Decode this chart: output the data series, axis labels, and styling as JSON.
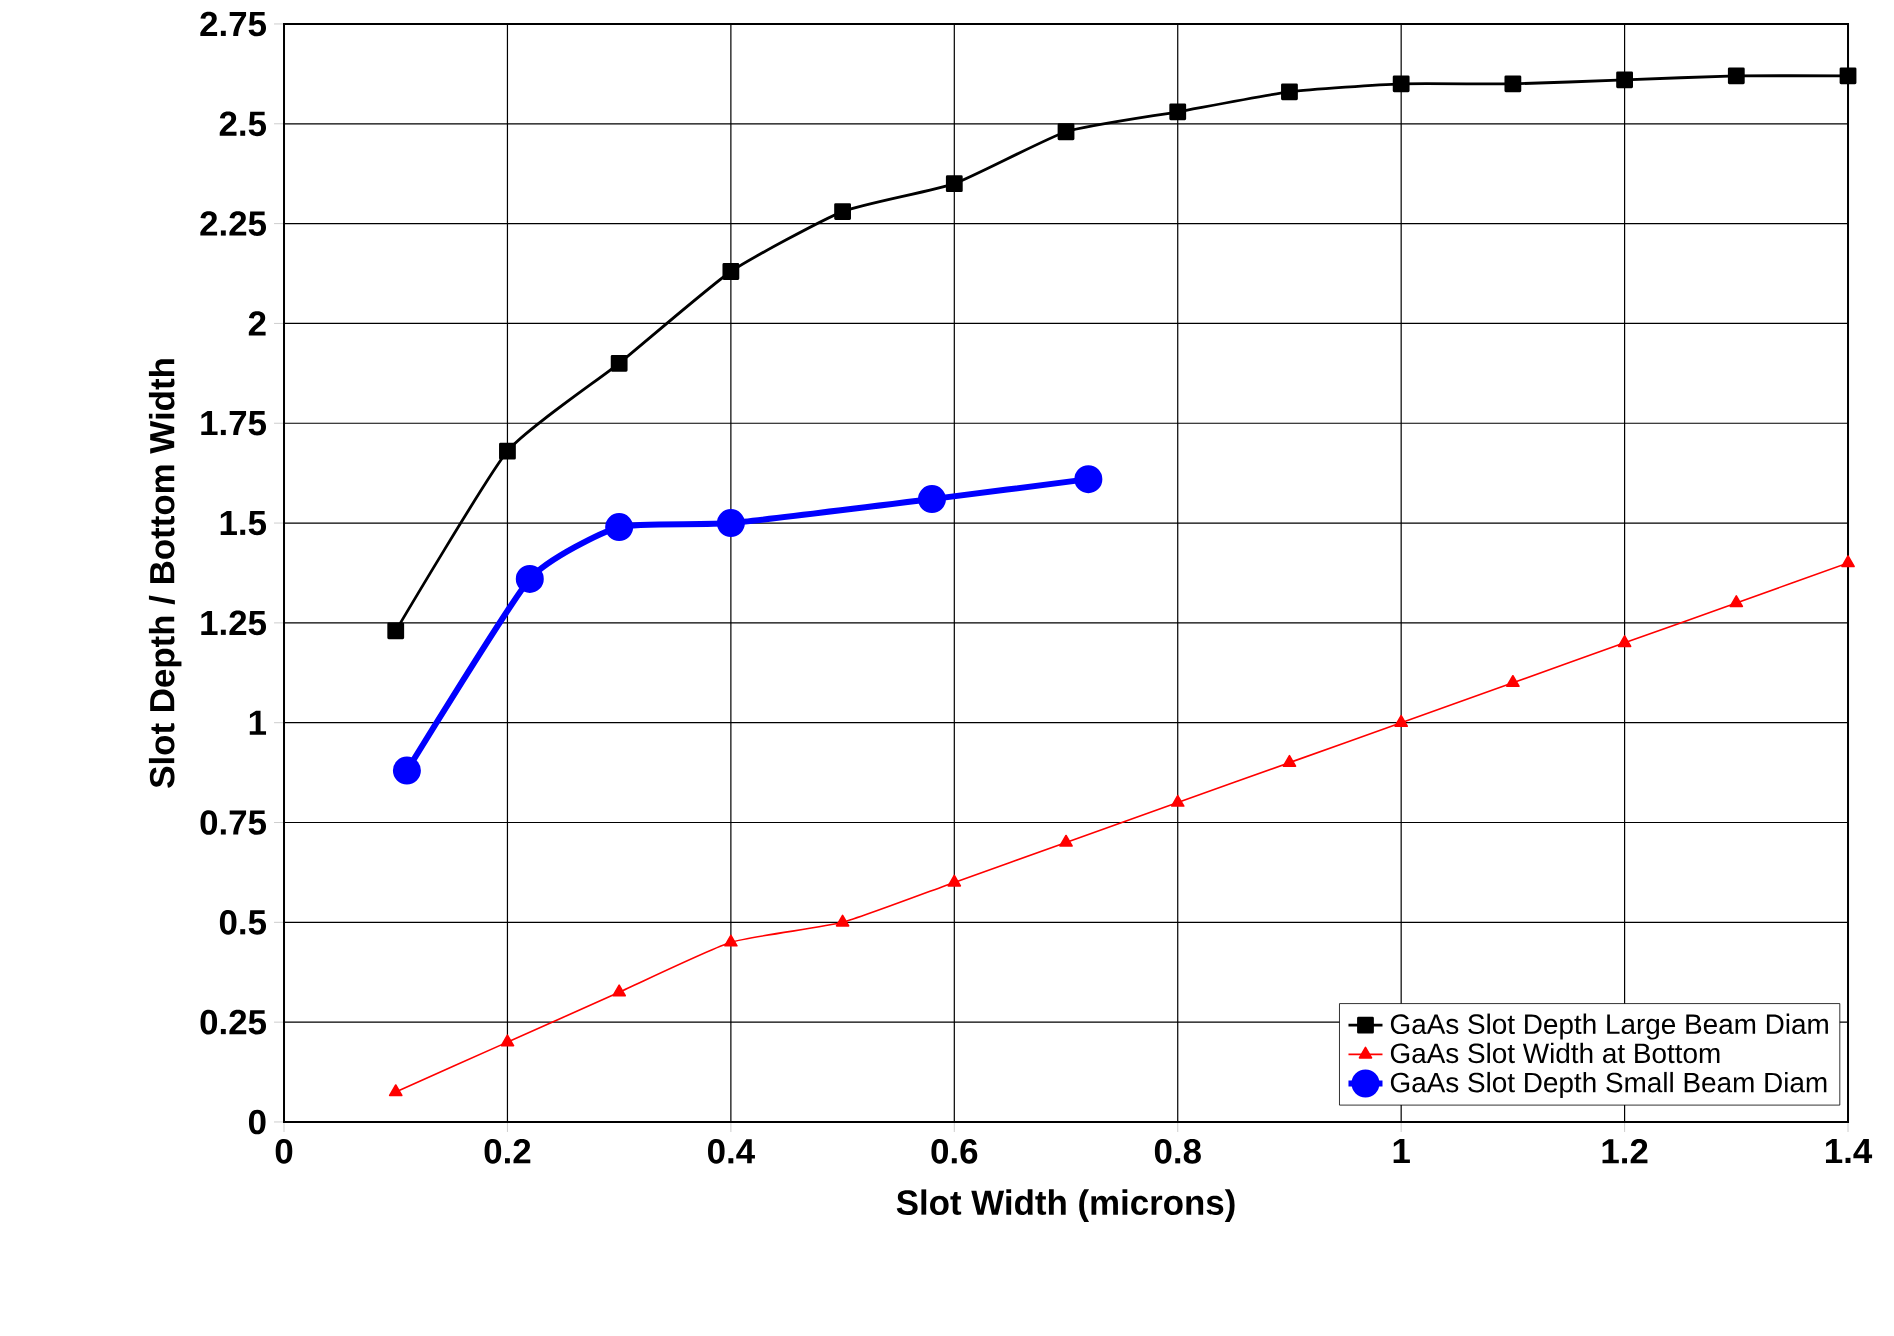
{
  "chart_data": {
    "type": "line",
    "xlabel": "Slot Width (microns)",
    "ylabel": "Slot Depth / Bottom Width",
    "xlim": [
      0,
      1.4
    ],
    "ylim": [
      0,
      2.75
    ],
    "xticks": [
      0,
      0.2,
      0.4,
      0.6,
      0.8,
      1,
      1.2,
      1.4
    ],
    "yticks": [
      0,
      0.25,
      0.5,
      0.75,
      1,
      1.25,
      1.5,
      1.75,
      2,
      2.25,
      2.5,
      2.75
    ],
    "grid": true,
    "legend": "bottom right",
    "series": [
      {
        "name": "GaAs Slot Depth Large Beam Diam",
        "color": "#000000",
        "marker": "square",
        "x": [
          0.1,
          0.2,
          0.3,
          0.4,
          0.5,
          0.6,
          0.7,
          0.8,
          0.9,
          1.0,
          1.1,
          1.2,
          1.3,
          1.4
        ],
        "values": [
          1.23,
          1.68,
          1.9,
          2.13,
          2.28,
          2.35,
          2.48,
          2.53,
          2.58,
          2.6,
          2.6,
          2.61,
          2.62,
          2.62
        ]
      },
      {
        "name": "GaAs Slot Width at Bottom",
        "color": "#ff0000",
        "marker": "triangle",
        "x": [
          0.1,
          0.2,
          0.3,
          0.4,
          0.5,
          0.6,
          0.7,
          0.8,
          0.9,
          1.0,
          1.1,
          1.2,
          1.3,
          1.4
        ],
        "values": [
          0.075,
          0.2,
          0.325,
          0.45,
          0.5,
          0.6,
          0.7,
          0.8,
          0.9,
          1.0,
          1.1,
          1.2,
          1.3,
          1.4
        ]
      },
      {
        "name": "GaAs Slot Depth Small Beam Diam",
        "color": "#0000ff",
        "marker": "circle",
        "x": [
          0.11,
          0.22,
          0.3,
          0.4,
          0.58,
          0.72
        ],
        "values": [
          0.88,
          1.36,
          1.49,
          1.5,
          1.56,
          1.61
        ]
      }
    ]
  }
}
